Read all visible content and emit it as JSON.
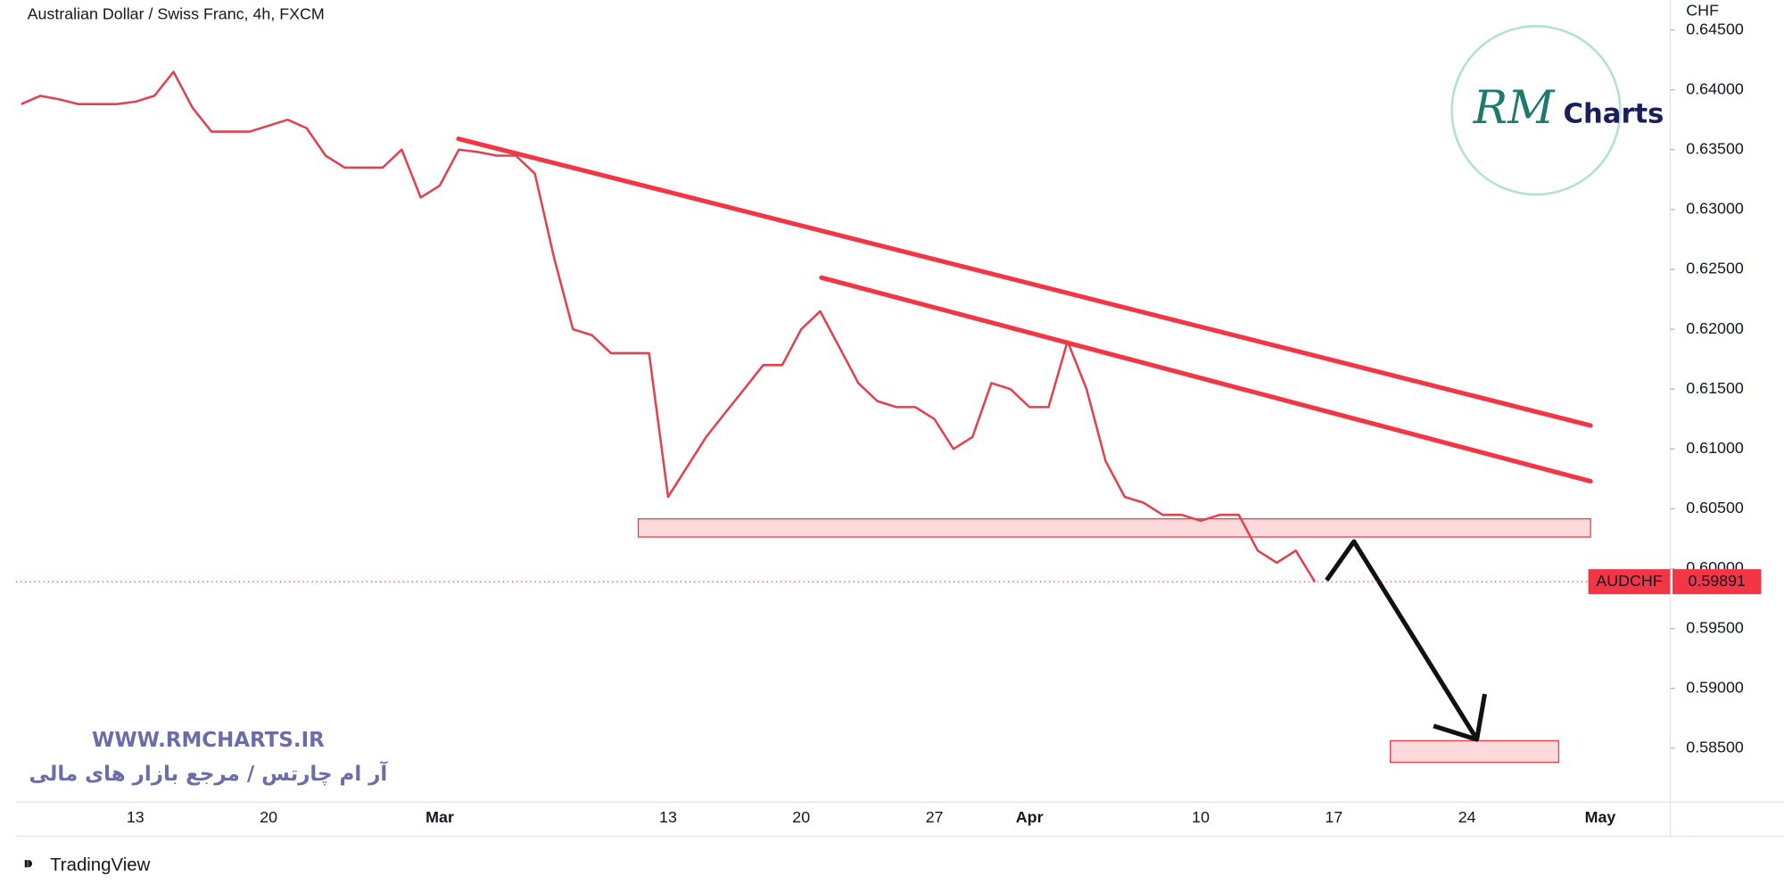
{
  "chart_data": {
    "type": "line",
    "title": "Australian Dollar / Swiss Franc, 4h, FXCM",
    "y_axis_label": "CHF",
    "categories": [
      null,
      null,
      null,
      null,
      null,
      null,
      "13",
      null,
      null,
      null,
      null,
      null,
      null,
      "20",
      null,
      null,
      null,
      null,
      null,
      null,
      null,
      null,
      "Mar",
      null,
      null,
      null,
      null,
      null,
      null,
      null,
      null,
      null,
      null,
      null,
      "13",
      null,
      null,
      null,
      null,
      null,
      null,
      "20",
      null,
      null,
      null,
      null,
      null,
      null,
      "27",
      null,
      null,
      null,
      null,
      "Apr",
      null,
      null,
      null,
      null,
      null,
      null,
      null,
      null,
      "10",
      null,
      null,
      null,
      null,
      null,
      null,
      "17",
      null,
      null,
      null,
      null,
      null,
      null,
      "24",
      null,
      null,
      null,
      null,
      null,
      null,
      "May",
      null,
      null
    ],
    "series": [
      {
        "name": "AUDCHF",
        "color": "#e0424f",
        "values": [
          0.6388,
          0.6395,
          0.6392,
          0.6388,
          0.6388,
          0.6388,
          0.639,
          0.6395,
          0.6415,
          0.6385,
          0.6365,
          0.6365,
          0.6365,
          0.637,
          0.6375,
          0.6368,
          0.6345,
          0.6335,
          0.6335,
          0.6335,
          0.635,
          0.631,
          0.632,
          0.635,
          0.6348,
          0.6345,
          0.6345,
          0.633,
          0.626,
          0.62,
          0.6195,
          0.618,
          0.618,
          0.618,
          0.606,
          0.6085,
          0.611,
          0.613,
          0.615,
          0.617,
          0.617,
          0.62,
          0.6215,
          0.6185,
          0.6155,
          0.614,
          0.6135,
          0.6135,
          0.6125,
          0.61,
          0.611,
          0.6155,
          0.615,
          0.6135,
          0.6135,
          0.619,
          0.615,
          0.609,
          0.606,
          0.6055,
          0.6045,
          0.6045,
          0.604,
          0.6045,
          0.6045,
          0.6015,
          0.6005,
          0.6015,
          0.5989,
          null,
          null,
          null,
          null,
          null,
          null,
          null,
          null,
          null,
          null,
          null,
          null,
          null,
          null,
          null,
          null,
          null
        ]
      }
    ],
    "ylim": [
      0.5805,
      0.6475
    ],
    "yticks": [
      {
        "value": 0.585,
        "label": "0.58500"
      },
      {
        "value": 0.59,
        "label": "0.59000"
      },
      {
        "value": 0.595,
        "label": "0.59500"
      },
      {
        "value": 0.6,
        "label": "0.60000"
      },
      {
        "value": 0.605,
        "label": "0.60500"
      },
      {
        "value": 0.61,
        "label": "0.61000"
      },
      {
        "value": 0.615,
        "label": "0.61500"
      },
      {
        "value": 0.62,
        "label": "0.62000"
      },
      {
        "value": 0.625,
        "label": "0.62500"
      },
      {
        "value": 0.63,
        "label": "0.63000"
      },
      {
        "value": 0.635,
        "label": "0.63500"
      },
      {
        "value": 0.64,
        "label": "0.64000"
      },
      {
        "value": 0.645,
        "label": "0.64500"
      }
    ],
    "grid": false,
    "last_price": {
      "symbol": "AUDCHF",
      "value": 0.59891,
      "label": "0.59891",
      "color": "#f23645"
    },
    "watermark": {
      "site": "WWW.RMCHARTS.IR",
      "tagline": "آر ام چارتس / مرجع بازار های مالی",
      "logo_mark": "RM",
      "logo_text": "Charts"
    },
    "branding": "TradingView"
  }
}
